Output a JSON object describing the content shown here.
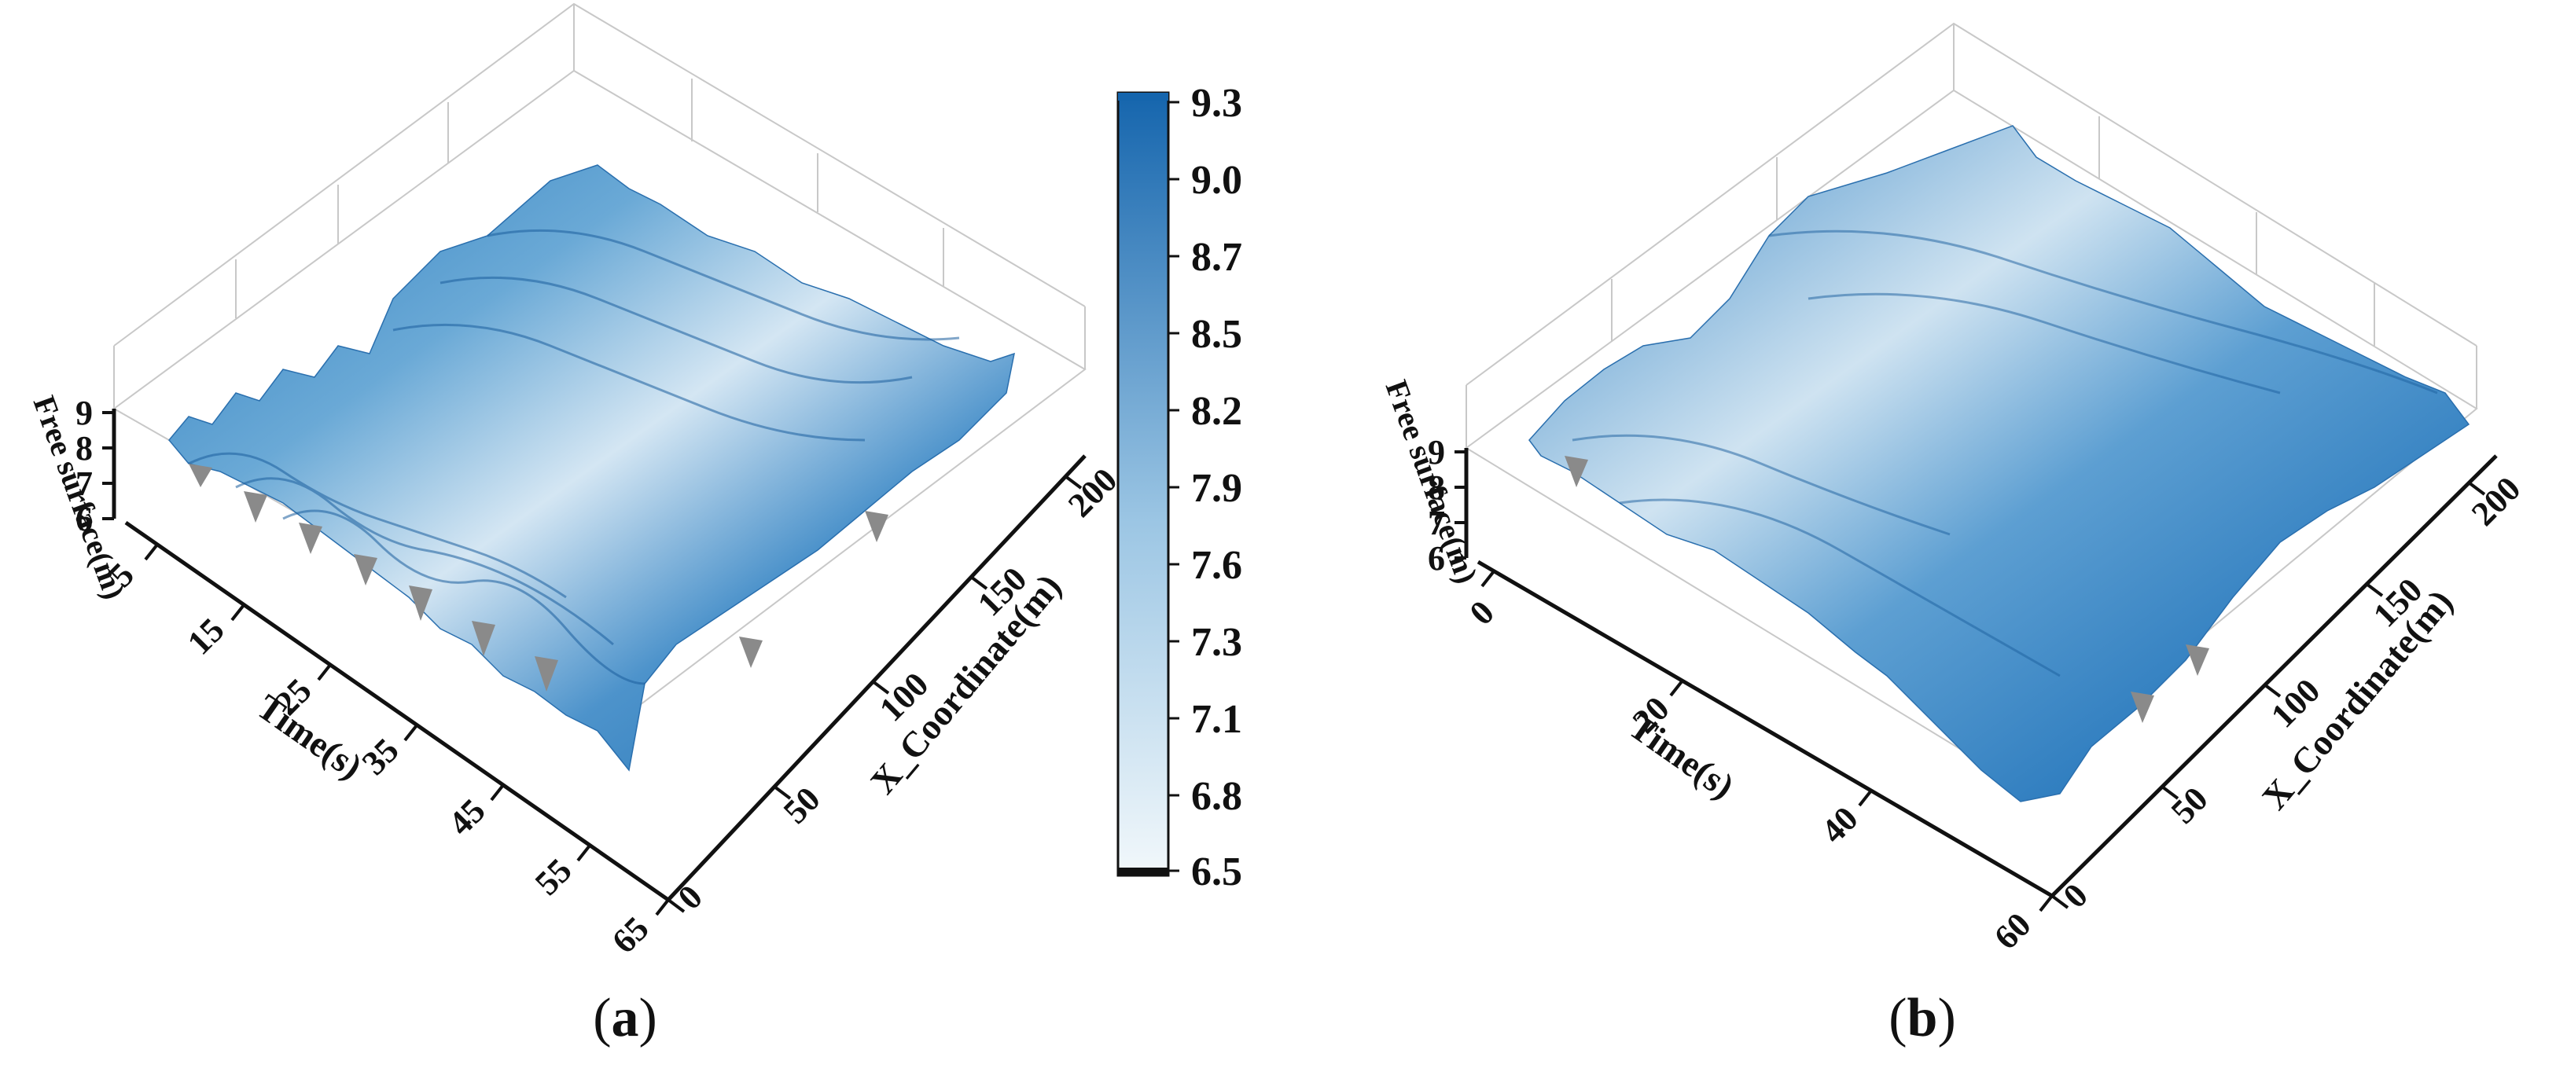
{
  "panels": [
    {
      "id": "a",
      "label_open": "(",
      "label_letter": "a",
      "label_close": ")",
      "chart_data": {
        "type": "surface3d",
        "title": "",
        "xlabel": "X_Coordinate(m)",
        "ylabel": "Time(s)",
        "zlabel": "Free surface(m)",
        "x_ticks": [
          "0",
          "50",
          "100",
          "150",
          "200"
        ],
        "y_ticks": [
          "5",
          "15",
          "25",
          "35",
          "45",
          "55",
          "65"
        ],
        "z_ticks": [
          "6",
          "7",
          "8",
          "9"
        ],
        "xlim": [
          0,
          220
        ],
        "ylim": [
          0,
          65
        ],
        "zlim": [
          6,
          9.3
        ],
        "grid": true,
        "surface_color_range": [
          6.5,
          9.3
        ]
      }
    },
    {
      "id": "b",
      "label_open": "(",
      "label_letter": "b",
      "label_close": ")",
      "chart_data": {
        "type": "surface3d",
        "title": "",
        "xlabel": "X_Coordinate(m)",
        "ylabel": "Time(s)",
        "zlabel": "Free surface(m)",
        "x_ticks": [
          "0",
          "50",
          "100",
          "150",
          "200"
        ],
        "y_ticks": [
          "0",
          "20",
          "40",
          "60"
        ],
        "z_ticks": [
          "6",
          "7",
          "8",
          "9"
        ],
        "xlim": [
          0,
          220
        ],
        "ylim": [
          0,
          62
        ],
        "zlim": [
          6,
          9.3
        ],
        "grid": true,
        "surface_color_range": [
          6.5,
          9.3
        ]
      }
    }
  ],
  "colorbar": {
    "ticks": [
      "9.3",
      "9.0",
      "8.7",
      "8.5",
      "8.2",
      "7.9",
      "7.6",
      "7.3",
      "7.1",
      "6.8",
      "6.5"
    ],
    "min": 6.5,
    "max": 9.3,
    "color_low": "#f2f8fb",
    "color_high": "#1565ad"
  },
  "colors": {
    "surface_dark": "#1a6db3",
    "surface_mid": "#5a9fd0",
    "surface_light": "#d9e9f4",
    "surface_side": "#8a8a8a",
    "axis": "#111111",
    "grid": "#c8c8c8"
  }
}
